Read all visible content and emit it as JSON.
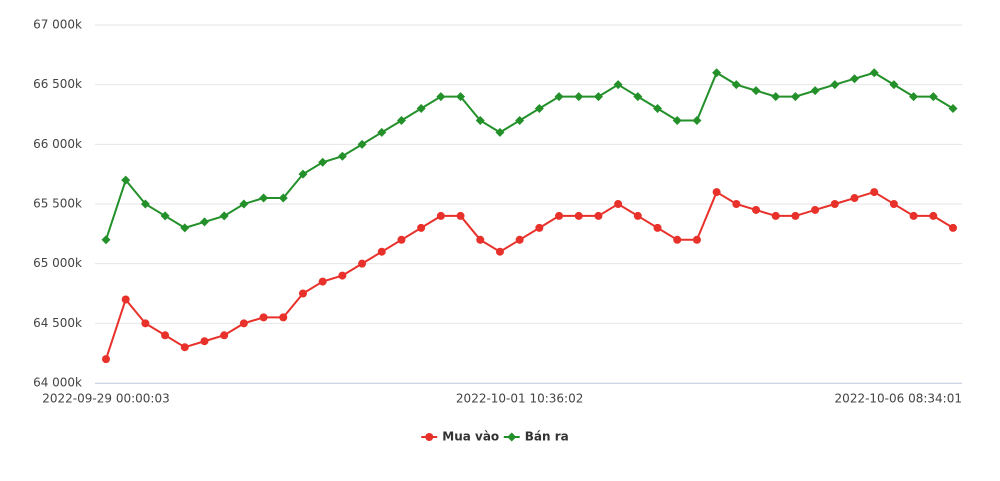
{
  "chart_data": {
    "type": "line",
    "categories": [
      "2022-09-29 00:00:03",
      null,
      null,
      null,
      null,
      null,
      null,
      null,
      null,
      null,
      null,
      null,
      null,
      null,
      null,
      null,
      null,
      null,
      null,
      null,
      null,
      "2022-10-01 10:36:02",
      null,
      null,
      null,
      null,
      null,
      null,
      null,
      null,
      null,
      null,
      null,
      null,
      null,
      null,
      null,
      null,
      null,
      null,
      null,
      null,
      null,
      "2022-10-06 08:34:01"
    ],
    "series": [
      {
        "name": "Mua vào",
        "color": "#e8312a",
        "marker": "circle",
        "values": [
          64200,
          64700,
          64500,
          64400,
          64300,
          64350,
          64400,
          64500,
          64550,
          64550,
          64750,
          64850,
          64900,
          65000,
          65100,
          65200,
          65300,
          65400,
          65400,
          65200,
          65100,
          65200,
          65300,
          65400,
          65400,
          65400,
          65500,
          65400,
          65300,
          65200,
          65200,
          65600,
          65500,
          65450,
          65400,
          65400,
          65450,
          65500,
          65550,
          65600,
          65500,
          65400,
          65400,
          65300
        ]
      },
      {
        "name": "Bán ra",
        "color": "#23902a",
        "marker": "diamond",
        "values": [
          65200,
          65700,
          65500,
          65400,
          65300,
          65350,
          65400,
          65500,
          65550,
          65550,
          65750,
          65850,
          65900,
          66000,
          66100,
          66200,
          66300,
          66400,
          66400,
          66200,
          66100,
          66200,
          66300,
          66400,
          66400,
          66400,
          66500,
          66400,
          66300,
          66200,
          66200,
          66600,
          66500,
          66450,
          66400,
          66400,
          66450,
          66500,
          66550,
          66600,
          66500,
          66400,
          66400,
          66300
        ]
      }
    ],
    "ylim": [
      64000,
      67000
    ],
    "yticks": [
      {
        "value": 64000,
        "label": "64 000k"
      },
      {
        "value": 64500,
        "label": "64 500k"
      },
      {
        "value": 65000,
        "label": "65 000k"
      },
      {
        "value": 65500,
        "label": "65 500k"
      },
      {
        "value": 66000,
        "label": "66 000k"
      },
      {
        "value": 66500,
        "label": "66 500k"
      },
      {
        "value": 67000,
        "label": "67 000k"
      }
    ],
    "grid": true,
    "legend": "bottom"
  }
}
